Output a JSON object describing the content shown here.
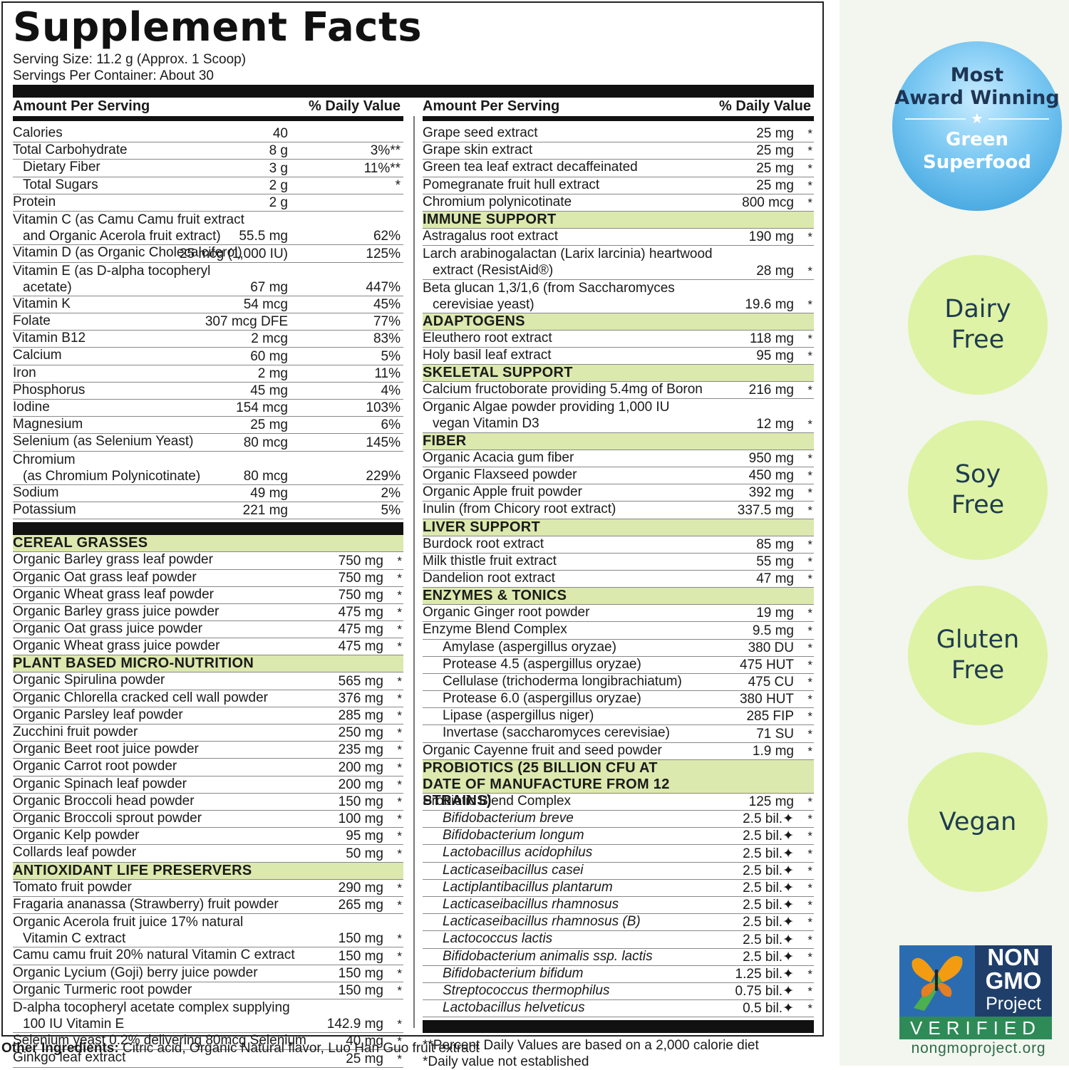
{
  "title": "Supplement Facts",
  "serving_size": "Serving Size: 11.2 g (Approx. 1 Scoop)",
  "servings_per_container": "Servings Per Container: About 30",
  "left_col": {
    "head_amount": "Amount Per Serving",
    "head_dv": "% Daily Value",
    "nutrients": [
      {
        "name": "Calories",
        "amount": "40",
        "dv": "",
        "sub": 0
      },
      {
        "name": "Total Carbohydrate",
        "amount": "8 g",
        "dv": "3%**",
        "sub": 0
      },
      {
        "name": "Dietary Fiber",
        "amount": "3 g",
        "dv": "11%**",
        "sub": 1
      },
      {
        "name": "Total Sugars",
        "amount": "2 g",
        "dv": "*",
        "sub": 1
      },
      {
        "name": "Protein",
        "amount": "2 g",
        "dv": "",
        "sub": 0
      },
      {
        "name": "Vitamin C (as Camu Camu fruit extract",
        "name2": "and Organic Acerola fruit extract)",
        "amount": "55.5 mg",
        "dv": "62%",
        "sub": 0
      },
      {
        "name": "Vitamin D (as Organic Cholecalciferol)",
        "amount": "25 mcg (1,000 IU)",
        "dv": "125%",
        "sub": 0
      },
      {
        "name": "Vitamin E (as D-alpha tocopheryl",
        "name2": "acetate)",
        "amount": "67 mg",
        "dv": "447%",
        "sub": 0
      },
      {
        "name": "Vitamin K",
        "amount": "54 mcg",
        "dv": "45%",
        "sub": 0
      },
      {
        "name": "Folate",
        "amount": "307 mcg DFE",
        "dv": "77%",
        "sub": 0
      },
      {
        "name": "Vitamin B12",
        "amount": "2 mcg",
        "dv": "83%",
        "sub": 0
      },
      {
        "name": "Calcium",
        "amount": "60 mg",
        "dv": "5%",
        "sub": 0
      },
      {
        "name": "Iron",
        "amount": "2 mg",
        "dv": "11%",
        "sub": 0
      },
      {
        "name": "Phosphorus",
        "amount": "45 mg",
        "dv": "4%",
        "sub": 0
      },
      {
        "name": "Iodine",
        "amount": "154 mcg",
        "dv": "103%",
        "sub": 0
      },
      {
        "name": "Magnesium",
        "amount": "25 mg",
        "dv": "6%",
        "sub": 0
      },
      {
        "name": "Selenium (as Selenium Yeast)",
        "amount": "80 mcg",
        "dv": "145%",
        "sub": 0
      },
      {
        "name": "Chromium",
        "name2": "(as Chromium Polynicotinate)",
        "amount": "80 mcg",
        "dv": "229%",
        "sub": 0
      },
      {
        "name": "Sodium",
        "amount": "49 mg",
        "dv": "2%",
        "sub": 0
      },
      {
        "name": "Potassium",
        "amount": "221 mg",
        "dv": "5%",
        "sub": 0
      }
    ],
    "sections": [
      {
        "title": "CEREAL GRASSES",
        "items": [
          {
            "name": "Organic Barley grass leaf powder",
            "amount": "750 mg",
            "star": "*"
          },
          {
            "name": "Organic Oat grass leaf powder",
            "amount": "750 mg",
            "star": "*"
          },
          {
            "name": "Organic Wheat grass leaf powder",
            "amount": "750 mg",
            "star": "*"
          },
          {
            "name": "Organic Barley grass juice powder",
            "amount": "475 mg",
            "star": "*"
          },
          {
            "name": "Organic Oat grass juice powder",
            "amount": "475 mg",
            "star": "*"
          },
          {
            "name": "Organic Wheat grass juice powder",
            "amount": "475 mg",
            "star": "*"
          }
        ]
      },
      {
        "title": "PLANT BASED MICRO-NUTRITION",
        "items": [
          {
            "name": "Organic Spirulina powder",
            "amount": "565 mg",
            "star": "*"
          },
          {
            "name": "Organic Chlorella cracked cell wall powder",
            "amount": "376 mg",
            "star": "*"
          },
          {
            "name": "Organic Parsley leaf powder",
            "amount": "285 mg",
            "star": "*"
          },
          {
            "name": "Zucchini fruit powder",
            "amount": "250 mg",
            "star": "*"
          },
          {
            "name": "Organic Beet root juice powder",
            "amount": "235 mg",
            "star": "*"
          },
          {
            "name": "Organic Carrot root powder",
            "amount": "200 mg",
            "star": "*"
          },
          {
            "name": "Organic Spinach leaf powder",
            "amount": "200 mg",
            "star": "*"
          },
          {
            "name": "Organic Broccoli head powder",
            "amount": "150 mg",
            "star": "*"
          },
          {
            "name": "Organic Broccoli sprout powder",
            "amount": "100 mg",
            "star": "*"
          },
          {
            "name": "Organic Kelp powder",
            "amount": "95 mg",
            "star": "*"
          },
          {
            "name": "Collards leaf powder",
            "amount": "50 mg",
            "star": "*"
          }
        ]
      },
      {
        "title": "ANTIOXIDANT LIFE PRESERVERS",
        "items": [
          {
            "name": "Tomato fruit powder",
            "amount": "290 mg",
            "star": "*"
          },
          {
            "name": "Fragaria ananassa (Strawberry) fruit powder",
            "amount": "265 mg",
            "star": "*"
          },
          {
            "name": "Organic Acerola fruit juice 17% natural",
            "name2": "Vitamin C extract",
            "amount": "150 mg",
            "star": "*"
          },
          {
            "name": "Camu camu fruit 20% natural Vitamin C extract",
            "amount": "150 mg",
            "star": "*"
          },
          {
            "name": "Organic Lycium (Goji) berry juice powder",
            "amount": "150 mg",
            "star": "*"
          },
          {
            "name": "Organic Turmeric root powder",
            "amount": "150 mg",
            "star": "*"
          },
          {
            "name": "D-alpha tocopheryl acetate complex supplying",
            "name2": "100 IU Vitamin E",
            "amount": "142.9 mg",
            "star": "*"
          },
          {
            "name": "Selenium yeast 0.2% delivering 80mcg Selenium",
            "amount": "40 mg",
            "star": "*"
          },
          {
            "name": "Ginkgo leaf extract",
            "amount": "25 mg",
            "star": "*"
          }
        ]
      }
    ]
  },
  "right_col": {
    "head_amount": "Amount Per Serving",
    "head_dv": "% Daily Value",
    "top_items": [
      {
        "name": "Grape seed extract",
        "amount": "25 mg",
        "star": "*"
      },
      {
        "name": "Grape skin extract",
        "amount": "25 mg",
        "star": "*"
      },
      {
        "name": "Green tea leaf extract decaffeinated",
        "amount": "25 mg",
        "star": "*"
      },
      {
        "name": "Pomegranate fruit hull extract",
        "amount": "25 mg",
        "star": "*"
      },
      {
        "name": "Chromium polynicotinate",
        "amount": "800 mcg",
        "star": "*"
      }
    ],
    "sections": [
      {
        "title": "IMMUNE SUPPORT",
        "items": [
          {
            "name": "Astragalus root extract",
            "amount": "190 mg",
            "star": "*"
          },
          {
            "name": "Larch arabinogalactan (Larix larcinia) heartwood",
            "name2": "extract (ResistAid®)",
            "amount": "28 mg",
            "star": "*"
          },
          {
            "name": "Beta glucan 1,3/1,6 (from Saccharomyces",
            "name2": "cerevisiae yeast)",
            "amount": "19.6 mg",
            "star": "*"
          }
        ]
      },
      {
        "title": "ADAPTOGENS",
        "items": [
          {
            "name": "Eleuthero root extract",
            "amount": "118 mg",
            "star": "*"
          },
          {
            "name": "Holy basil leaf extract",
            "amount": "95 mg",
            "star": "*"
          }
        ]
      },
      {
        "title": "SKELETAL SUPPORT",
        "items": [
          {
            "name": "Calcium fructoborate providing 5.4mg of Boron",
            "amount": "216 mg",
            "star": "*"
          },
          {
            "name": "Organic Algae powder providing 1,000 IU",
            "name2": "vegan Vitamin D3",
            "amount": "12 mg",
            "star": "*"
          }
        ]
      },
      {
        "title": "FIBER",
        "items": [
          {
            "name": "Organic Acacia gum fiber",
            "amount": "950 mg",
            "star": "*"
          },
          {
            "name": "Organic Flaxseed powder",
            "amount": "450 mg",
            "star": "*"
          },
          {
            "name": "Organic Apple fruit powder",
            "amount": "392 mg",
            "star": "*"
          },
          {
            "name": "Inulin (from Chicory root extract)",
            "amount": "337.5 mg",
            "star": "*"
          }
        ]
      },
      {
        "title": "LIVER SUPPORT",
        "items": [
          {
            "name": "Burdock root extract",
            "amount": "85 mg",
            "star": "*"
          },
          {
            "name": "Milk thistle fruit extract",
            "amount": "55 mg",
            "star": "*"
          },
          {
            "name": "Dandelion root extract",
            "amount": "47 mg",
            "star": "*"
          }
        ]
      },
      {
        "title": "ENZYMES & TONICS",
        "items": [
          {
            "name": "Organic Ginger root powder",
            "amount": "19 mg",
            "star": "*"
          },
          {
            "name": "Enzyme Blend Complex",
            "amount": "9.5 mg",
            "star": "*"
          },
          {
            "name": "Amylase (aspergillus oryzae)",
            "amount": "380 DU",
            "star": "*",
            "sub": 2
          },
          {
            "name": "Protease 4.5 (aspergillus oryzae)",
            "amount": "475 HUT",
            "star": "*",
            "sub": 2
          },
          {
            "name": "Cellulase (trichoderma longibrachiatum)",
            "amount": "475 CU",
            "star": "*",
            "sub": 2
          },
          {
            "name": "Protease 6.0 (aspergillus oryzae)",
            "amount": "380 HUT",
            "star": "*",
            "sub": 2
          },
          {
            "name": "Lipase (aspergillus niger)",
            "amount": "285 FIP",
            "star": "*",
            "sub": 2
          },
          {
            "name": "Invertase (saccharomyces cerevisiae)",
            "amount": "71 SU",
            "star": "*",
            "sub": 2
          },
          {
            "name": "Organic Cayenne fruit and seed powder",
            "amount": "1.9 mg",
            "star": "*"
          }
        ]
      },
      {
        "title": "PROBIOTICS (25 BILLION CFU AT DATE OF MANUFACTURE FROM 12 STRAINS)",
        "two": true,
        "items": [
          {
            "name": "Probiotic Blend Complex",
            "amount": "125 mg",
            "star": "*"
          },
          {
            "name": "Bifidobacterium breve",
            "amount": "2.5 bil.✦",
            "star": "*",
            "sub": 2,
            "it": true
          },
          {
            "name": "Bifidobacterium longum",
            "amount": "2.5 bil.✦",
            "star": "*",
            "sub": 2,
            "it": true
          },
          {
            "name": "Lactobacillus acidophilus",
            "amount": "2.5 bil.✦",
            "star": "*",
            "sub": 2,
            "it": true
          },
          {
            "name": "Lacticaseibacillus casei",
            "amount": "2.5 bil.✦",
            "star": "*",
            "sub": 2,
            "it": true
          },
          {
            "name": "Lactiplantibacillus plantarum",
            "amount": "2.5 bil.✦",
            "star": "*",
            "sub": 2,
            "it": true
          },
          {
            "name": "Lacticaseibacillus rhamnosus",
            "amount": "2.5 bil.✦",
            "star": "*",
            "sub": 2,
            "it": true
          },
          {
            "name": "Lacticaseibacillus rhamnosus (B)",
            "amount": "2.5 bil.✦",
            "star": "*",
            "sub": 2,
            "it": true
          },
          {
            "name": "Lactococcus lactis",
            "amount": "2.5 bil.✦",
            "star": "*",
            "sub": 2,
            "it": true
          },
          {
            "name": "Bifidobacterium animalis ssp. lactis",
            "amount": "2.5 bil.✦",
            "star": "*",
            "sub": 2,
            "it": true
          },
          {
            "name": "Bifidobacterium bifidum",
            "amount": "1.25 bil.✦",
            "star": "*",
            "sub": 2,
            "it": true
          },
          {
            "name": "Streptococcus thermophilus",
            "amount": "0.75 bil.✦",
            "star": "*",
            "sub": 2,
            "it": true
          },
          {
            "name": "Lactobacillus helveticus",
            "amount": "0.5 bil.✦",
            "star": "*",
            "sub": 2,
            "it": true
          }
        ]
      }
    ],
    "note1": "**Percent Daily Values are based on a 2,000 calorie diet",
    "note2": "*Daily value not established"
  },
  "other_ingredients": {
    "label": "Other Ingredients:",
    "text": " Citric acid, Organic Natural flavor, Luo Han Guo fruit extract"
  },
  "award": {
    "line1": "Most",
    "line2": "Award Winning",
    "line3": "Green",
    "line4": "Superfood"
  },
  "badges": [
    {
      "l1": "Dairy",
      "l2": "Free"
    },
    {
      "l1": "Soy",
      "l2": "Free"
    },
    {
      "l1": "Gluten",
      "l2": "Free"
    },
    {
      "l1": "Vegan",
      "l2": ""
    }
  ],
  "nongmo": {
    "non": "NON",
    "gmo": "GMO",
    "project": "Project",
    "verified": "VERIFIED",
    "url": "nongmoproject.org"
  },
  "colors": {
    "section_bg": "#dbe9ae",
    "badge_bg": "#def3a5",
    "side_bg": "#f2f6ee"
  }
}
